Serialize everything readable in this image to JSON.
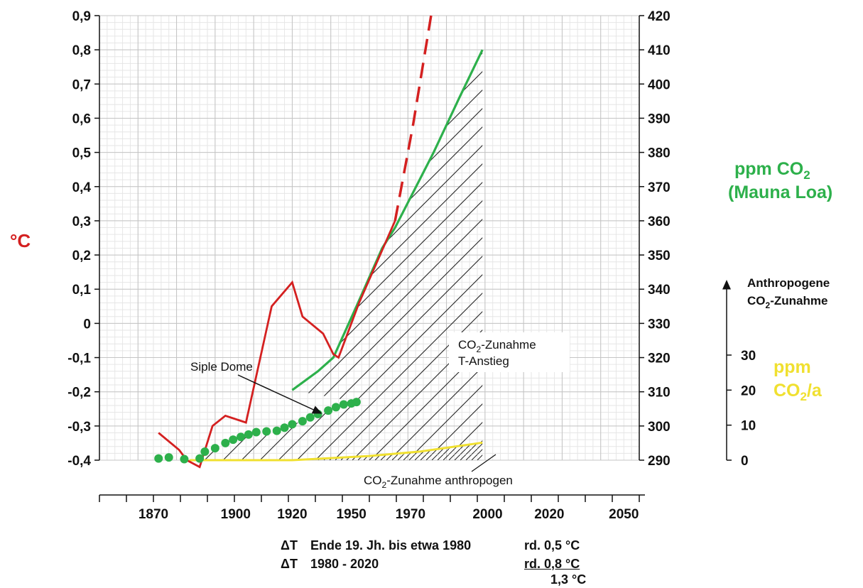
{
  "chart_data": {
    "type": "line",
    "x_axis": {
      "ticks": [
        1870,
        1900,
        1920,
        1950,
        1970,
        2000,
        2020,
        2050
      ],
      "range": [
        1845,
        2055
      ]
    },
    "y_left": {
      "label": "°C",
      "range": [
        -0.4,
        0.9
      ],
      "ticks": [
        "0,9",
        "0,8",
        "0,7",
        "0,6",
        "0,5",
        "0,4",
        "0,3",
        "0,2",
        "0,1",
        "0",
        "-0,1",
        "-0,2",
        "-0,3",
        "-0,4"
      ]
    },
    "y_right": {
      "label_line1": "ppm CO",
      "label_sub": "2",
      "label_line2": "(Mauna Loa)",
      "range": [
        290,
        420
      ],
      "ticks": [
        "420",
        "410",
        "400",
        "390",
        "380",
        "370",
        "360",
        "350",
        "340",
        "330",
        "320",
        "310",
        "300",
        "290"
      ]
    },
    "y_right2": {
      "label_line1": "ppm",
      "label_line2": "CO",
      "label_sub": "2",
      "label_suffix": "/a",
      "ticks": [
        "30",
        "20",
        "10",
        "0"
      ],
      "range": [
        0,
        30
      ],
      "arrow_label_line1": "Anthropogene",
      "arrow_label_line2": "CO",
      "arrow_label_sub": "2",
      "arrow_label_suffix": "-Zunahme"
    },
    "series": [
      {
        "axis": "left",
        "color": "#d42020",
        "points": [
          [
            1868,
            -0.32
          ],
          [
            1876,
            -0.37
          ],
          [
            1879,
            -0.4
          ],
          [
            1884,
            -0.42
          ],
          [
            1889,
            -0.3
          ],
          [
            1894,
            -0.27
          ],
          [
            1902,
            -0.29
          ],
          [
            1912,
            0.05
          ],
          [
            1920,
            0.12
          ],
          [
            1924,
            0.02
          ],
          [
            1932,
            -0.03
          ],
          [
            1936,
            -0.09
          ],
          [
            1938,
            -0.1
          ],
          [
            1946,
            0.06
          ],
          [
            1960,
            0.3
          ]
        ]
      },
      {
        "axis": "left",
        "color": "#d42020",
        "dashed": true,
        "points": [
          [
            1960,
            0.3
          ],
          [
            1967,
            0.58
          ],
          [
            1974,
            0.9
          ]
        ]
      },
      {
        "axis": "right",
        "color": "#2db04b",
        "points": [
          [
            1920,
            310.5
          ],
          [
            1930,
            316
          ],
          [
            1936,
            320
          ],
          [
            1945,
            335
          ],
          [
            1955,
            352
          ],
          [
            1960,
            358
          ],
          [
            1975,
            380
          ],
          [
            1985,
            396
          ],
          [
            1994,
            410
          ]
        ]
      },
      {
        "axis": "right",
        "color": "#2db04b",
        "marker": "dot",
        "name": "Siple Dome",
        "points": [
          [
            1868,
            290.5
          ],
          [
            1872,
            290.8
          ],
          [
            1878,
            290.3
          ],
          [
            1884,
            290.5
          ],
          [
            1886,
            292.5
          ],
          [
            1890,
            293.5
          ],
          [
            1894,
            295
          ],
          [
            1897,
            296
          ],
          [
            1900,
            296.8
          ],
          [
            1903,
            297.5
          ],
          [
            1906,
            298.2
          ],
          [
            1910,
            298.4
          ],
          [
            1914,
            298.6
          ],
          [
            1917,
            299.5
          ],
          [
            1920,
            300.5
          ],
          [
            1924,
            301.4
          ],
          [
            1927,
            302.5
          ],
          [
            1930,
            303.5
          ],
          [
            1934,
            304.5
          ],
          [
            1937,
            305.5
          ],
          [
            1940,
            306.3
          ],
          [
            1943,
            306.6
          ],
          [
            1945,
            307
          ]
        ]
      },
      {
        "axis": "right2",
        "color": "#f0e030",
        "points": [
          [
            1880,
            0
          ],
          [
            1920,
            0
          ],
          [
            1950,
            1.2
          ],
          [
            1970,
            2.5
          ],
          [
            1994,
            5
          ]
        ]
      }
    ],
    "annotations": [
      {
        "text": "Siple Dome"
      },
      {
        "text_main": "CO",
        "text_sub": "2",
        "text_suffix": "-Zunahme",
        "text_line2": "T-Anstieg"
      },
      {
        "text_main": "CO",
        "text_sub": "2",
        "text_suffix": "-Zunahme anthropogen"
      }
    ]
  },
  "footer": {
    "delta": "ΔT",
    "row1_text": "Ende 19. Jh. bis etwa 1980",
    "row1_value": "rd. 0,5 °C",
    "row2_text": "1980 - 2020",
    "row2_value": "rd. 0,8 °C",
    "total": "1,3 °C"
  }
}
